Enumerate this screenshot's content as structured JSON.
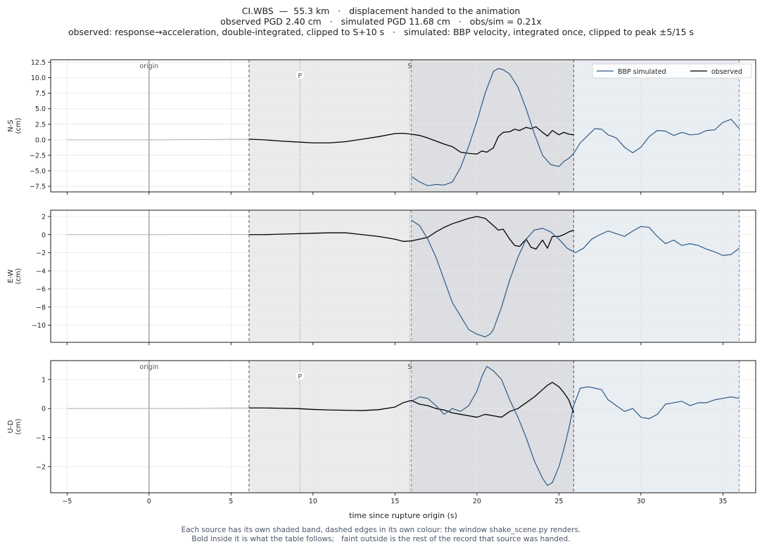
{
  "title": {
    "line1": "CI.WBS  —  55.3 km   ·   displacement handed to the animation",
    "line2": "observed PGD 2.40 cm   ·   simulated PGD 11.68 cm   ·   obs/sim = 0.21x",
    "line3": "observed: response→acceleration, double-integrated, clipped to S+10 s   ·   simulated: BBP velocity, integrated once, clipped to peak ±5/15 s"
  },
  "footer": {
    "line1": "Each source has its own shaded band, dashed edges in its own colour: the window shake_scene.py renders.",
    "line2": "Bold inside it is what the table follows;   faint outside is the rest of the record that source was handed."
  },
  "colors": {
    "observed": "#000000",
    "simulated": "#2f5a85",
    "observed_band": "#ebebeb",
    "simulated_band": "#e9eef3",
    "overlap_band": "#dcdee2",
    "observed_edge": "#555555",
    "simulated_edge": "#6d8bab",
    "faint": "#b0b0b0",
    "grid": "#e6e6e6",
    "annotation": "#555555"
  },
  "chart_data": {
    "type": "line",
    "xlabel": "time since rupture origin (s)",
    "xlim": [
      -6,
      37
    ],
    "xticks": [
      -5,
      0,
      5,
      10,
      15,
      20,
      25,
      30,
      35
    ],
    "grid": true,
    "legend": {
      "placement": "top-right",
      "entries": [
        "BBP simulated",
        "observed"
      ]
    },
    "markers": [
      {
        "label": "origin",
        "t": 0
      },
      {
        "label": "P",
        "t": 9.2
      },
      {
        "label": "S",
        "t": 15.9
      }
    ],
    "windows": {
      "observed": [
        6.1,
        25.9
      ],
      "simulated": [
        16.0,
        36.0
      ]
    },
    "panels": [
      {
        "ylabel_top": "N-S",
        "ylabel_bottom": "(cm)",
        "ylim": [
          -8.4,
          12.9
        ],
        "yticks": [
          -7.5,
          -5.0,
          -2.5,
          0.0,
          2.5,
          5.0,
          7.5,
          10.0,
          12.5
        ],
        "tick_format": "fixed1",
        "show_legend": true,
        "show_labels": true,
        "series": [
          {
            "role": "observed",
            "x": [
              -5,
              0,
              2,
              4,
              5,
              6.1,
              7,
              8,
              9,
              10,
              11,
              12,
              13,
              14,
              15,
              15.5,
              16,
              16.5,
              17,
              17.5,
              18,
              18.5,
              19,
              19.5,
              20,
              20.3,
              20.6,
              21,
              21.3,
              21.6,
              22,
              22.3,
              22.6,
              23,
              23.3,
              23.6,
              24,
              24.3,
              24.6,
              25,
              25.3,
              25.6,
              25.9
            ],
            "y": [
              0,
              0,
              0.02,
              0.06,
              0.09,
              0.1,
              0.0,
              -0.2,
              -0.35,
              -0.5,
              -0.5,
              -0.3,
              0.1,
              0.5,
              1.0,
              1.05,
              0.9,
              0.7,
              0.3,
              -0.2,
              -0.7,
              -1.1,
              -2.0,
              -2.2,
              -2.3,
              -1.8,
              -2.0,
              -1.3,
              0.5,
              1.2,
              1.3,
              1.7,
              1.5,
              2.0,
              1.8,
              2.1,
              1.2,
              0.6,
              1.5,
              0.8,
              1.2,
              0.9,
              0.8
            ]
          },
          {
            "role": "simulated",
            "x": [
              16,
              16.5,
              17,
              17.5,
              18,
              18.5,
              19,
              19.5,
              20,
              20.5,
              21,
              21.3,
              21.6,
              22,
              22.5,
              23,
              23.5,
              24,
              24.5,
              25,
              25.3,
              25.6,
              25.9,
              26.3,
              26.8,
              27.2,
              27.6,
              28,
              28.5,
              29,
              29.5,
              30,
              30.5,
              31,
              31.5,
              32,
              32.5,
              33,
              33.5,
              34,
              34.5,
              35,
              35.5,
              36
            ],
            "y": [
              -5.9,
              -6.8,
              -7.4,
              -7.2,
              -7.3,
              -6.8,
              -4.5,
              -1.0,
              3.0,
              7.5,
              11.0,
              11.5,
              11.3,
              10.6,
              8.5,
              5.0,
              1.0,
              -2.5,
              -4.0,
              -4.3,
              -3.5,
              -3.0,
              -2.2,
              -0.5,
              0.8,
              1.8,
              1.7,
              0.8,
              0.3,
              -1.2,
              -2.1,
              -1.2,
              0.5,
              1.5,
              1.4,
              0.7,
              1.2,
              0.8,
              0.9,
              1.5,
              1.6,
              2.8,
              3.3,
              1.8
            ]
          }
        ]
      },
      {
        "ylabel_top": "E-W",
        "ylabel_bottom": "(cm)",
        "ylim": [
          -11.9,
          2.7
        ],
        "yticks": [
          -10,
          -8,
          -6,
          -4,
          -2,
          0,
          2
        ],
        "tick_format": "int",
        "show_legend": false,
        "show_labels": false,
        "series": [
          {
            "role": "observed",
            "x": [
              -5,
              0,
              2,
              4,
              5,
              6.1,
              7,
              8,
              9,
              10,
              11,
              12,
              13,
              14,
              15,
              15.5,
              16,
              16.5,
              17,
              17.5,
              18,
              18.5,
              19,
              19.5,
              20,
              20.5,
              21,
              21.3,
              21.6,
              22,
              22.3,
              22.6,
              23,
              23.3,
              23.6,
              24,
              24.3,
              24.6,
              25,
              25.3,
              25.6,
              25.9
            ],
            "y": [
              0,
              0,
              0.01,
              0.02,
              0.02,
              0.0,
              0.0,
              0.05,
              0.1,
              0.15,
              0.2,
              0.2,
              0.0,
              -0.2,
              -0.5,
              -0.75,
              -0.7,
              -0.5,
              -0.3,
              0.3,
              0.8,
              1.2,
              1.5,
              1.8,
              2.0,
              1.8,
              1.0,
              0.5,
              0.6,
              -0.5,
              -1.2,
              -1.3,
              -0.5,
              -1.4,
              -1.6,
              -0.6,
              -1.5,
              -0.2,
              -0.2,
              0.0,
              0.3,
              0.5
            ]
          },
          {
            "role": "simulated",
            "x": [
              16,
              16.5,
              17,
              17.5,
              18,
              18.5,
              19,
              19.5,
              20,
              20.5,
              20.8,
              21,
              21.5,
              22,
              22.5,
              23,
              23.5,
              24,
              24.5,
              25,
              25.5,
              26,
              26.5,
              27,
              27.5,
              28,
              28.5,
              29,
              29.5,
              30,
              30.5,
              31,
              31.5,
              32,
              32.5,
              33,
              33.5,
              34,
              34.5,
              35,
              35.5,
              36
            ],
            "y": [
              1.6,
              1.0,
              -0.5,
              -2.5,
              -5.0,
              -7.5,
              -9.0,
              -10.5,
              -11.0,
              -11.3,
              -11.0,
              -10.5,
              -8.0,
              -5.0,
              -2.5,
              -0.5,
              0.5,
              0.7,
              0.3,
              -0.5,
              -1.5,
              -2.0,
              -1.5,
              -0.5,
              0.0,
              0.4,
              0.1,
              -0.2,
              0.4,
              0.9,
              0.8,
              -0.2,
              -1.0,
              -0.6,
              -1.2,
              -1.0,
              -1.2,
              -1.6,
              -1.9,
              -2.3,
              -2.2,
              -1.5
            ]
          }
        ]
      },
      {
        "ylabel_top": "U-D",
        "ylabel_bottom": "(cm)",
        "ylim": [
          -2.9,
          1.65
        ],
        "yticks": [
          -2,
          -1,
          0,
          1
        ],
        "tick_format": "int",
        "show_legend": false,
        "show_labels": true,
        "series": [
          {
            "role": "observed",
            "x": [
              -5,
              0,
              2,
              4,
              5,
              6.1,
              7,
              8,
              9,
              10,
              11,
              12,
              13,
              14,
              15,
              15.5,
              16,
              16.5,
              17,
              17.5,
              18,
              18.5,
              19,
              19.5,
              20,
              20.5,
              21,
              21.5,
              22,
              22.5,
              23,
              23.5,
              24,
              24.3,
              24.6,
              25,
              25.3,
              25.6,
              25.9
            ],
            "y": [
              0,
              0,
              0,
              0.01,
              0.02,
              0.02,
              0.02,
              0.01,
              0.0,
              -0.03,
              -0.05,
              -0.06,
              -0.07,
              -0.04,
              0.05,
              0.2,
              0.28,
              0.15,
              0.1,
              0.0,
              -0.05,
              -0.15,
              -0.2,
              -0.25,
              -0.3,
              -0.2,
              -0.25,
              -0.3,
              -0.1,
              0.0,
              0.2,
              0.4,
              0.65,
              0.8,
              0.9,
              0.75,
              0.55,
              0.3,
              -0.15
            ]
          },
          {
            "role": "simulated",
            "x": [
              16,
              16.5,
              17,
              17.5,
              18,
              18.5,
              19,
              19.5,
              20,
              20.3,
              20.6,
              21,
              21.5,
              22,
              22.5,
              23,
              23.5,
              24,
              24.3,
              24.6,
              25,
              25.3,
              25.6,
              25.9,
              26.3,
              26.8,
              27.2,
              27.6,
              28,
              28.5,
              29,
              29.5,
              30,
              30.5,
              31,
              31.5,
              32,
              32.5,
              33,
              33.5,
              34,
              34.5,
              35,
              35.5,
              36
            ],
            "y": [
              0.25,
              0.4,
              0.35,
              0.1,
              -0.2,
              0.0,
              -0.1,
              0.1,
              0.6,
              1.1,
              1.45,
              1.3,
              1.0,
              0.3,
              -0.3,
              -1.0,
              -1.8,
              -2.4,
              -2.65,
              -2.55,
              -2.0,
              -1.4,
              -0.7,
              0.1,
              0.7,
              0.75,
              0.7,
              0.65,
              0.3,
              0.1,
              -0.1,
              0.0,
              -0.3,
              -0.35,
              -0.2,
              0.15,
              0.2,
              0.25,
              0.1,
              0.2,
              0.2,
              0.3,
              0.35,
              0.4,
              0.35
            ]
          }
        ]
      }
    ]
  }
}
